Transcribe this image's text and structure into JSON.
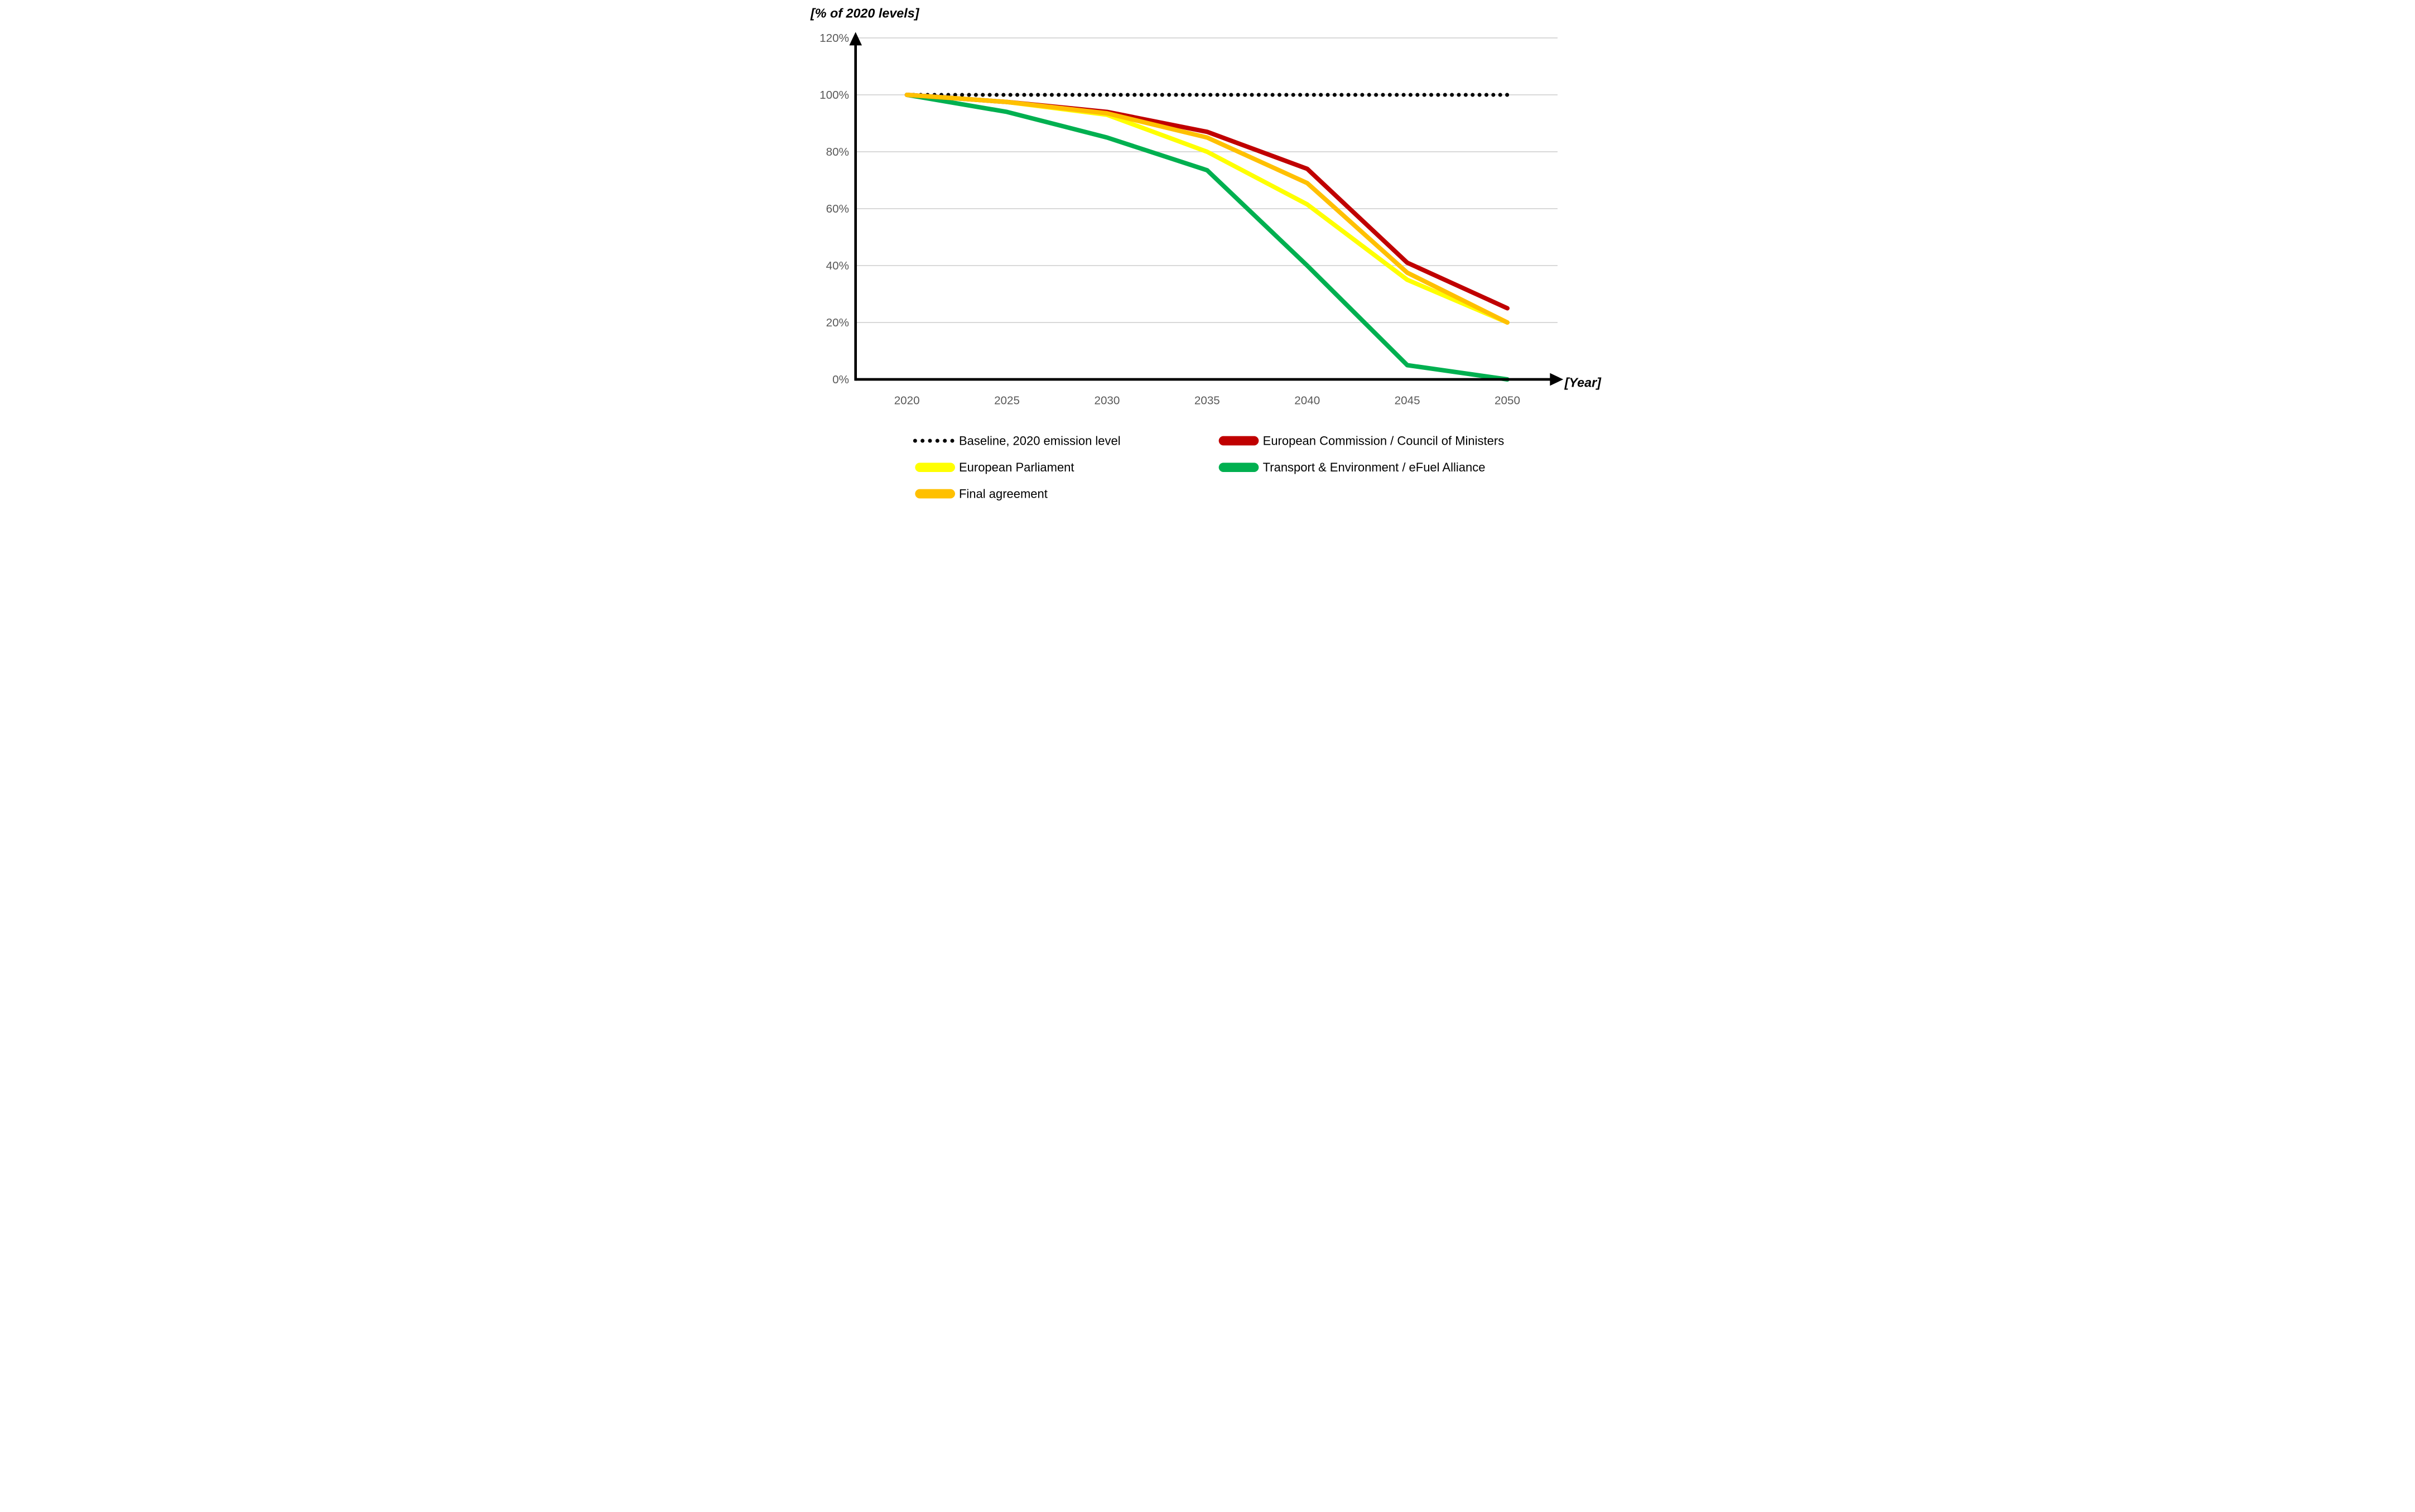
{
  "title": {
    "y_axis": "[% of 2020 levels]",
    "x_axis": "[Year]"
  },
  "axes": {
    "y_tick_labels": [
      "0%",
      "20%",
      "40%",
      "60%",
      "80%",
      "100%",
      "120%"
    ],
    "y_tick_values": [
      0,
      20,
      40,
      60,
      80,
      100,
      120
    ],
    "x_tick_labels": [
      "2020",
      "2025",
      "2030",
      "2035",
      "2040",
      "2045",
      "2050"
    ]
  },
  "chart_data": {
    "type": "line",
    "title": "",
    "xlabel": "[Year]",
    "ylabel": "[% of 2020 levels]",
    "x": [
      2020,
      2025,
      2030,
      2035,
      2040,
      2045,
      2050
    ],
    "ylim": [
      0,
      120
    ],
    "grid": true,
    "legend_position": "bottom",
    "series": [
      {
        "name": "Baseline, 2020 emission level",
        "color": "#000000",
        "style": "dotted",
        "values": [
          100,
          100,
          100,
          100,
          100,
          100,
          100
        ]
      },
      {
        "name": "European Commission / Council of Ministers",
        "color": "#C00000",
        "style": "solid",
        "values": [
          100,
          97.5,
          94,
          87,
          74,
          41,
          25
        ]
      },
      {
        "name": "European Parliament",
        "color": "#FFFF00",
        "style": "solid",
        "values": [
          100,
          97.5,
          93,
          80,
          61.5,
          35,
          20
        ]
      },
      {
        "name": "Final agreement",
        "color": "#FFC000",
        "style": "solid",
        "values": [
          100,
          97.5,
          93.5,
          85,
          69,
          37.5,
          20
        ]
      },
      {
        "name": "Transport & Environment / eFuel Alliance",
        "color": "#00B050",
        "style": "solid",
        "values": [
          100,
          94,
          85,
          73.5,
          40,
          5,
          0
        ]
      }
    ]
  },
  "legend": {
    "left_column": [
      0,
      2,
      3
    ],
    "right_column": [
      1,
      4
    ]
  },
  "colors": {
    "background": "#FFFFFF",
    "gridline": "#D9D9D9",
    "axis": "#000000",
    "tick_label": "#595959",
    "legend_text": "#000000"
  }
}
